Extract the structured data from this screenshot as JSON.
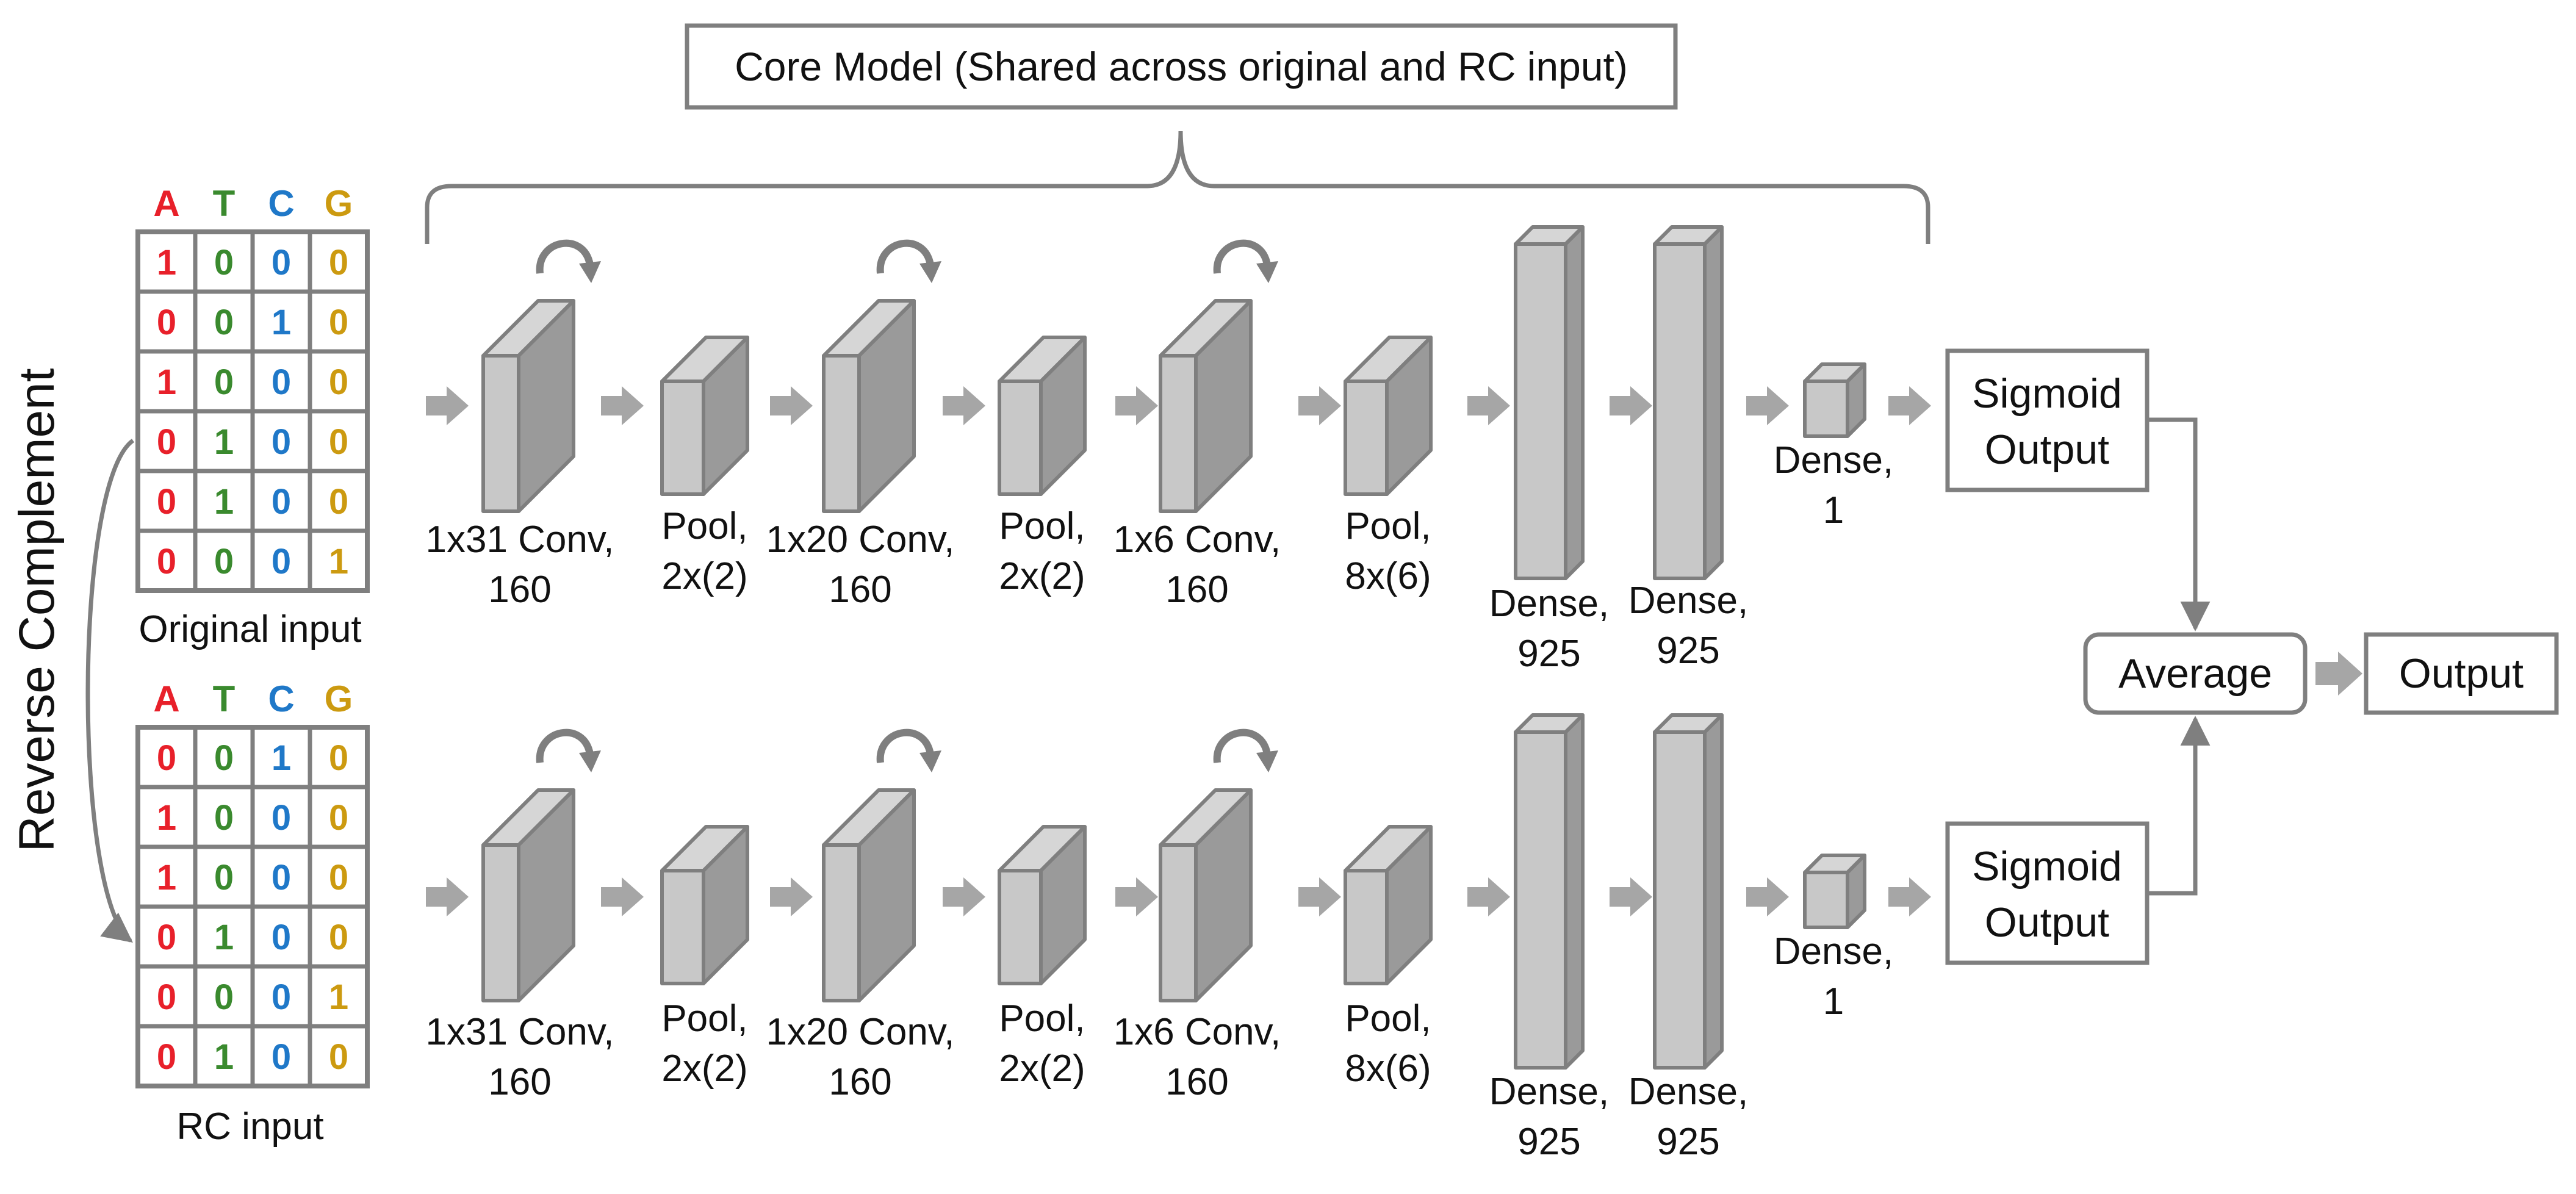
{
  "core_model_label": "Core Model (Shared across original and RC input)",
  "side_label": "Reverse Complement",
  "matrix_headers": [
    "A",
    "T",
    "C",
    "G"
  ],
  "colors": {
    "A": "#e8202a",
    "T": "#3a8a2e",
    "C": "#1f78c8",
    "G": "#cc9a10",
    "grid": "#7f7f7f",
    "block_front": "#c8c8c8",
    "block_side": "#9a9a9a",
    "block_top": "#d6d6d6",
    "arrow": "#a6a6a6",
    "line": "#7f7f7f"
  },
  "inputs": [
    {
      "caption": "Original input",
      "rows": [
        [
          "1",
          "0",
          "0",
          "0"
        ],
        [
          "0",
          "0",
          "1",
          "0"
        ],
        [
          "1",
          "0",
          "0",
          "0"
        ],
        [
          "0",
          "1",
          "0",
          "0"
        ],
        [
          "0",
          "1",
          "0",
          "0"
        ],
        [
          "0",
          "0",
          "0",
          "1"
        ]
      ]
    },
    {
      "caption": "RC input",
      "rows": [
        [
          "0",
          "0",
          "1",
          "0"
        ],
        [
          "1",
          "0",
          "0",
          "0"
        ],
        [
          "1",
          "0",
          "0",
          "0"
        ],
        [
          "0",
          "1",
          "0",
          "0"
        ],
        [
          "0",
          "0",
          "0",
          "1"
        ],
        [
          "0",
          "1",
          "0",
          "0"
        ]
      ]
    }
  ],
  "layers": [
    {
      "type": "conv",
      "line1": "1x31 Conv,",
      "line2": "160"
    },
    {
      "type": "pool",
      "line1": "Pool,",
      "line2": "2x(2)"
    },
    {
      "type": "conv",
      "line1": "1x20 Conv,",
      "line2": "160"
    },
    {
      "type": "pool",
      "line1": "Pool,",
      "line2": "2x(2)"
    },
    {
      "type": "conv",
      "line1": "1x6 Conv,",
      "line2": "160"
    },
    {
      "type": "pool",
      "line1": "Pool,",
      "line2": "8x(6)"
    },
    {
      "type": "dense",
      "line1": "Dense,",
      "line2": "925"
    },
    {
      "type": "dense",
      "line1": "Dense,",
      "line2": "925"
    },
    {
      "type": "dense_small",
      "line1": "Dense,",
      "line2": "1"
    }
  ],
  "sigmoid_output_line1": "Sigmoid",
  "sigmoid_output_line2": "Output",
  "average_label": "Average",
  "output_label": "Output"
}
